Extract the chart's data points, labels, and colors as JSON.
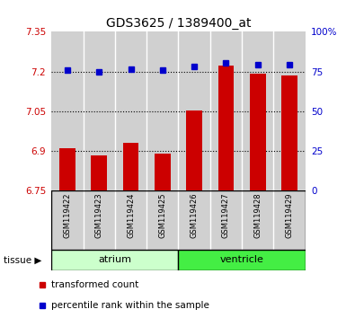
{
  "title": "GDS3625 / 1389400_at",
  "samples": [
    "GSM119422",
    "GSM119423",
    "GSM119424",
    "GSM119425",
    "GSM119426",
    "GSM119427",
    "GSM119428",
    "GSM119429"
  ],
  "red_values": [
    6.91,
    6.885,
    6.93,
    6.889,
    7.052,
    7.222,
    7.193,
    7.185
  ],
  "blue_values": [
    76,
    75,
    76.5,
    76,
    78,
    80.5,
    79.5,
    79.5
  ],
  "ylim_left": [
    6.75,
    7.35
  ],
  "ylim_right": [
    0,
    100
  ],
  "yticks_left": [
    6.75,
    6.9,
    7.05,
    7.2,
    7.35
  ],
  "yticks_right": [
    0,
    25,
    50,
    75,
    100
  ],
  "ytick_labels_left": [
    "6.75",
    "6.9",
    "7.05",
    "7.2",
    "7.35"
  ],
  "ytick_labels_right": [
    "0",
    "25",
    "50",
    "75",
    "100%"
  ],
  "tissue_labels": [
    "atrium",
    "ventricle"
  ],
  "atrium_color": "#ccffcc",
  "ventricle_color": "#44ee44",
  "red_color": "#cc0000",
  "blue_color": "#0000cc",
  "bar_width": 0.5,
  "sample_area_color": "#d0d0d0",
  "legend_items": [
    "transformed count",
    "percentile rank within the sample"
  ]
}
